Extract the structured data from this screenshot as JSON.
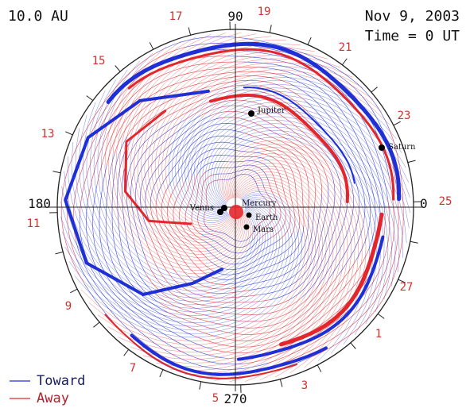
{
  "header": {
    "scale_label": "10.0 AU",
    "date": "Nov  9, 2003",
    "time": "Time =  0 UT"
  },
  "axes": {
    "angle_0": "0",
    "angle_90": "90",
    "angle_180": "180",
    "angle_270": "270"
  },
  "rotation_numbers": [
    "19",
    "21",
    "23",
    "25",
    "27",
    "1",
    "3",
    "5",
    "7",
    "9",
    "11",
    "13",
    "15",
    "17"
  ],
  "planets": [
    {
      "name": "Jupiter"
    },
    {
      "name": "Saturn"
    },
    {
      "name": "Venus"
    },
    {
      "name": "Mercury"
    },
    {
      "name": "Earth"
    },
    {
      "name": "Mars"
    }
  ],
  "legend": {
    "toward_label": "Toward",
    "away_label": "Away",
    "toward_color": "#1f2fd6",
    "away_color": "#e3262b"
  },
  "colors": {
    "toward": "#1f2fd6",
    "away": "#e3262b",
    "rotation_number_color": "#d4302e"
  }
}
